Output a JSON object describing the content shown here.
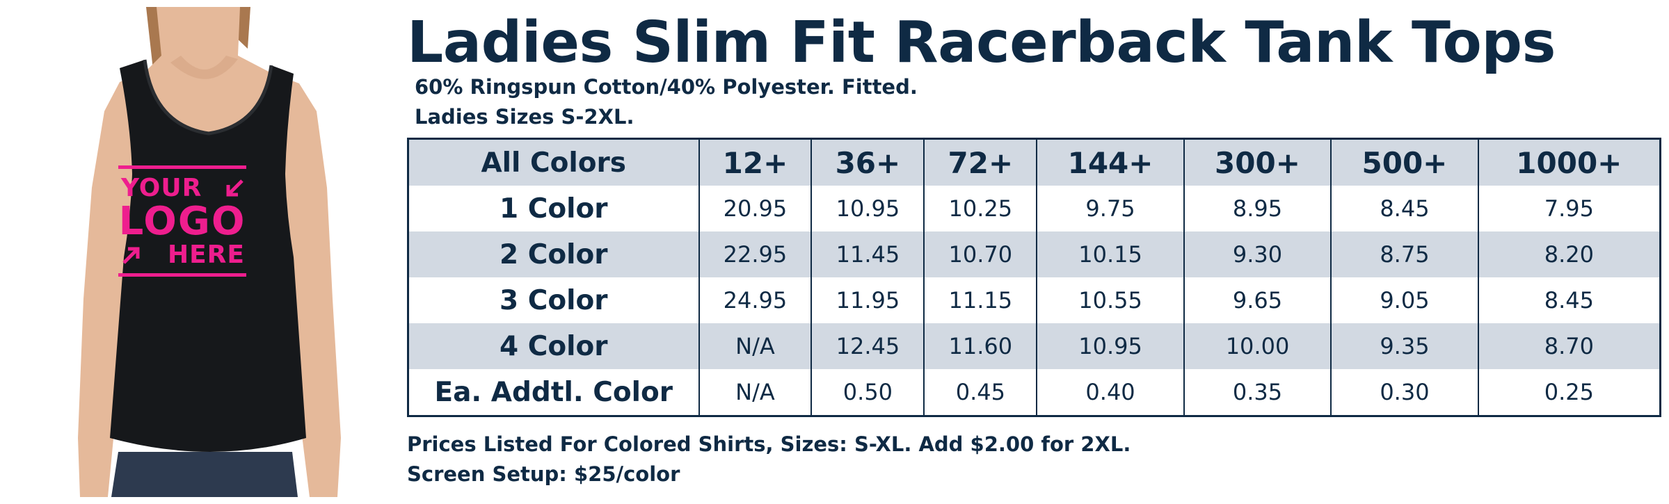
{
  "title": "Ladies Slim Fit Racerback Tank Tops",
  "subtitle_lines": [
    "60% Ringspun Cotton/40% Polyester. Fitted.",
    "Ladies Sizes S-2XL."
  ],
  "logo": {
    "line1": "YOUR",
    "line2": "LOGO",
    "line3": "HERE",
    "color": "#ee1e8e"
  },
  "table": {
    "corner_label": "All Colors",
    "columns": [
      "12+",
      "36+",
      "72+",
      "144+",
      "300+",
      "500+",
      "1000+"
    ],
    "rows": [
      {
        "label": "1 Color",
        "values": [
          "20.95",
          "10.95",
          "10.25",
          "9.75",
          "8.95",
          "8.45",
          "7.95"
        ]
      },
      {
        "label": "2 Color",
        "values": [
          "22.95",
          "11.45",
          "10.70",
          "10.15",
          "9.30",
          "8.75",
          "8.20"
        ]
      },
      {
        "label": "3 Color",
        "values": [
          "24.95",
          "11.95",
          "11.15",
          "10.55",
          "9.65",
          "9.05",
          "8.45"
        ]
      },
      {
        "label": "4 Color",
        "values": [
          "N/A",
          "12.45",
          "11.60",
          "10.95",
          "10.00",
          "9.35",
          "8.70"
        ]
      },
      {
        "label": "Ea. Addtl. Color",
        "values": [
          "N/A",
          "0.50",
          "0.45",
          "0.40",
          "0.35",
          "0.30",
          "0.25"
        ]
      }
    ]
  },
  "notes": [
    "Prices Listed For Colored Shirts, Sizes: S-XL.  Add $2.00 for 2XL.",
    "Screen Setup: $25/color"
  ],
  "colors": {
    "navy": "#0f2a44",
    "row_shade": "#d2d9e2",
    "logo_pink": "#ee1e8e",
    "shirt": "#16181b"
  }
}
